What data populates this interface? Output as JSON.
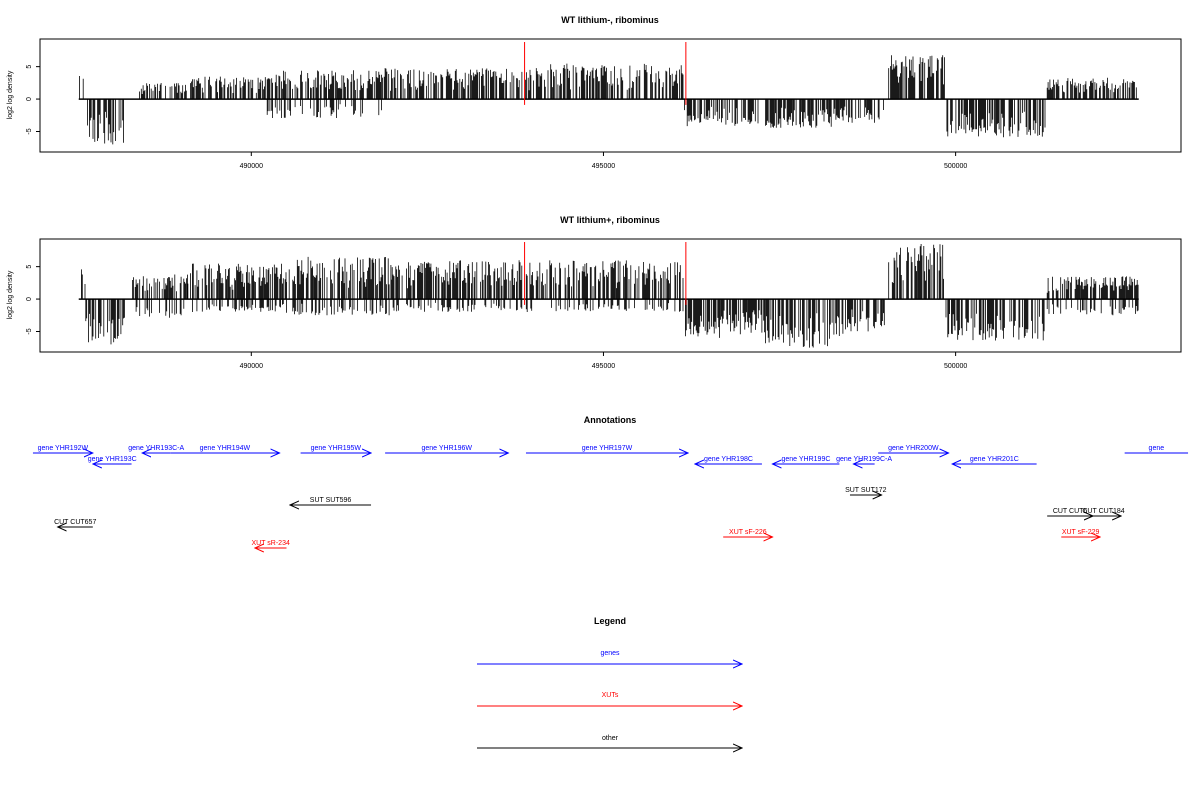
{
  "chart_data": [
    {
      "type": "bar",
      "title": "WT lithium-, ribominus",
      "xlabel": "",
      "ylabel": "log2 log density",
      "xlim": [
        487000,
        503200
      ],
      "ylim": [
        -7.7,
        8.8
      ],
      "xticks": [
        490000,
        495000,
        500000
      ],
      "xtick_labels": [
        "490000",
        "495000",
        "500000"
      ],
      "yticks": [
        5,
        0,
        -5
      ],
      "ytick_labels": [
        "5",
        "0",
        "-5"
      ],
      "grid": false,
      "series": [
        {
          "color": "#000000",
          "segments": [
            {
              "x": [
                487550,
                487620
              ],
              "min": 0,
              "max": 4.2
            },
            {
              "x": [
                487650,
                488200
              ],
              "min": -7.0,
              "max": 0
            },
            {
              "x": [
                488400,
                489100
              ],
              "min": 0,
              "max": 2.5
            },
            {
              "x": [
                489100,
                490200
              ],
              "min": 0,
              "max": 3.5
            },
            {
              "x": [
                490200,
                491900
              ],
              "min": -3.0,
              "max": 4.5
            },
            {
              "x": [
                491900,
                494200
              ],
              "min": 0,
              "max": 4.8
            },
            {
              "x": [
                494200,
                496150
              ],
              "min": 0,
              "max": 5.5
            },
            {
              "x": [
                496150,
                496900
              ],
              "min": -4.2,
              "max": 0
            },
            {
              "x": [
                496900,
                497200
              ],
              "min": -4.0,
              "max": 0
            },
            {
              "x": [
                497300,
                498300
              ],
              "min": -4.5,
              "max": 0
            },
            {
              "x": [
                498300,
                499000
              ],
              "min": -3.8,
              "max": 0
            },
            {
              "x": [
                499050,
                499850
              ],
              "min": 0,
              "max": 6.8
            },
            {
              "x": [
                499850,
                501300
              ],
              "min": -6.0,
              "max": 0
            },
            {
              "x": [
                501300,
                502600
              ],
              "min": 0,
              "max": 3.3
            },
            {
              "x": [
                502450,
                502550
              ],
              "min": 0,
              "max": 3.7
            }
          ]
        },
        {
          "color": "#ff0000",
          "spikes": [
            {
              "x": 493880,
              "y": 8.8
            },
            {
              "x": 496170,
              "y": 8.8
            }
          ]
        }
      ]
    },
    {
      "type": "bar",
      "title": "WT lithium+, ribominus",
      "xlabel": "",
      "ylabel": "log2 log density",
      "xlim": [
        487000,
        503200
      ],
      "ylim": [
        -7.7,
        8.8
      ],
      "xticks": [
        490000,
        495000,
        500000
      ],
      "xtick_labels": [
        "490000",
        "495000",
        "500000"
      ],
      "yticks": [
        5,
        0,
        -5
      ],
      "ytick_labels": [
        "5",
        "0",
        "-5"
      ],
      "grid": false,
      "series": [
        {
          "color": "#000000",
          "segments": [
            {
              "x": [
                487550,
                487650
              ],
              "min": -3.0,
              "max": 5.5
            },
            {
              "x": [
                487650,
                488200
              ],
              "min": -7.0,
              "max": 0
            },
            {
              "x": [
                488300,
                489100
              ],
              "min": -3.0,
              "max": 4.0
            },
            {
              "x": [
                489100,
                490500
              ],
              "min": -2.0,
              "max": 5.5
            },
            {
              "x": [
                490500,
                492000
              ],
              "min": -2.5,
              "max": 6.5
            },
            {
              "x": [
                492000,
                494200
              ],
              "min": -2.0,
              "max": 6.0
            },
            {
              "x": [
                494200,
                496150
              ],
              "min": -2.0,
              "max": 6.0
            },
            {
              "x": [
                496150,
                497300
              ],
              "min": -6.0,
              "max": 0
            },
            {
              "x": [
                497300,
                498400
              ],
              "min": -7.5,
              "max": 0
            },
            {
              "x": [
                498400,
                499000
              ],
              "min": -5.0,
              "max": 0
            },
            {
              "x": [
                499050,
                499850
              ],
              "min": 0,
              "max": 8.5
            },
            {
              "x": [
                499850,
                501300
              ],
              "min": -6.5,
              "max": 0
            },
            {
              "x": [
                501300,
                502600
              ],
              "min": -2.5,
              "max": 3.5
            }
          ]
        },
        {
          "color": "#ff0000",
          "spikes": [
            {
              "x": 493880,
              "y": 8.8
            },
            {
              "x": 496170,
              "y": 8.8
            }
          ]
        }
      ]
    },
    {
      "type": "annotation-track",
      "title": "Annotations",
      "xlim": [
        487000,
        503200
      ],
      "features": [
        {
          "label": "gene YHR192W",
          "class": "genes",
          "start": 486900,
          "end": 487750,
          "strand": "+"
        },
        {
          "label": "gene YHR193C",
          "class": "genes",
          "start": 487750,
          "end": 488300,
          "strand": "-"
        },
        {
          "label": "gene YHR193C-A",
          "class": "genes",
          "start": 488450,
          "end": 488850,
          "strand": "-"
        },
        {
          "label": "gene YHR194W",
          "class": "genes",
          "start": 488850,
          "end": 490400,
          "strand": "+"
        },
        {
          "label": "gene YHR195W",
          "class": "genes",
          "start": 490700,
          "end": 491700,
          "strand": "+"
        },
        {
          "label": "gene YHR196W",
          "class": "genes",
          "start": 491900,
          "end": 493650,
          "strand": "+"
        },
        {
          "label": "gene YHR197W",
          "class": "genes",
          "start": 493900,
          "end": 496200,
          "strand": "+"
        },
        {
          "label": "gene YHR198C",
          "class": "genes",
          "start": 496300,
          "end": 497250,
          "strand": "-"
        },
        {
          "label": "gene YHR199C",
          "class": "genes",
          "start": 497400,
          "end": 498350,
          "strand": "-"
        },
        {
          "label": "gene YHR199C-A",
          "class": "genes",
          "start": 498550,
          "end": 498850,
          "strand": "-"
        },
        {
          "label": "gene YHR200W",
          "class": "genes",
          "start": 498900,
          "end": 499900,
          "strand": "+"
        },
        {
          "label": "gene YHR201C",
          "class": "genes",
          "start": 499950,
          "end": 501150,
          "strand": "-"
        },
        {
          "label": "gene",
          "class": "genes",
          "start": 502400,
          "end": 503300,
          "strand": "+"
        },
        {
          "label": "SUT SUT596",
          "class": "other",
          "start": 490550,
          "end": 491700,
          "strand": "-"
        },
        {
          "label": "SUT SUT172",
          "class": "other",
          "start": 498500,
          "end": 498950,
          "strand": "+"
        },
        {
          "label": "CUT CUT657",
          "class": "other",
          "start": 487250,
          "end": 487750,
          "strand": "-"
        },
        {
          "label": "CUT CUT6",
          "class": "other",
          "start": 501300,
          "end": 501950,
          "strand": "+"
        },
        {
          "label": "CUT CUT184",
          "class": "other",
          "start": 501850,
          "end": 502350,
          "strand": "+"
        },
        {
          "label": "XUT sR-234",
          "class": "XUTs",
          "start": 490050,
          "end": 490500,
          "strand": "-"
        },
        {
          "label": "XUT sF-226",
          "class": "XUTs",
          "start": 496700,
          "end": 497400,
          "strand": "+"
        },
        {
          "label": "XUT sF-229",
          "class": "XUTs",
          "start": 501500,
          "end": 502050,
          "strand": "+"
        }
      ]
    },
    {
      "type": "legend",
      "title": "Legend",
      "entries": [
        {
          "name": "genes",
          "color": "#0000ff"
        },
        {
          "name": "XUTs",
          "color": "#ff0000"
        },
        {
          "name": "other",
          "color": "#000000"
        }
      ]
    }
  ]
}
